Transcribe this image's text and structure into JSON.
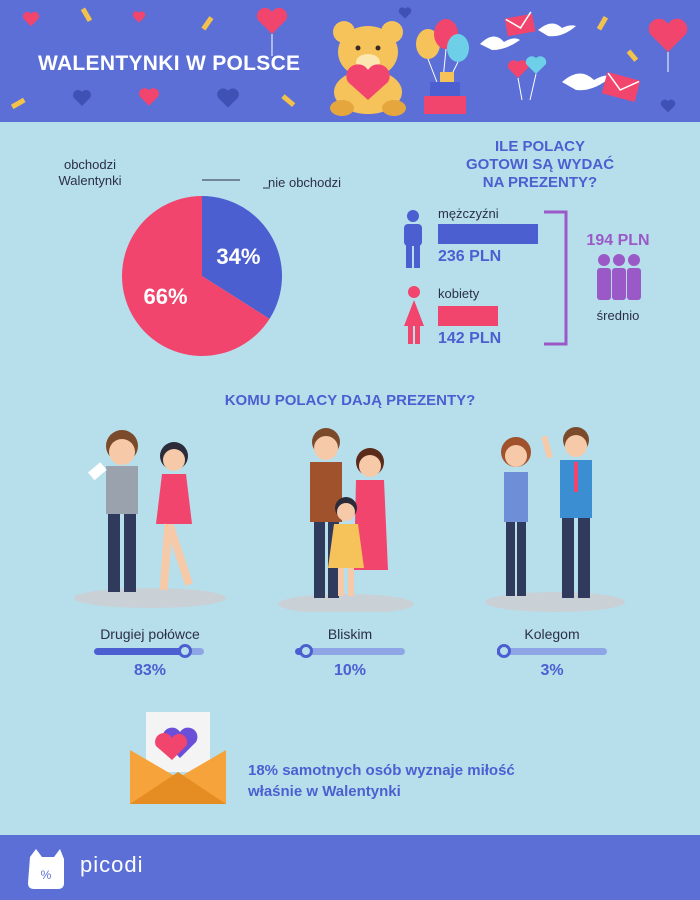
{
  "header": {
    "title": "WALENTYNKI W POLSCE"
  },
  "pie": {
    "label_celebrate": "obchodzi\nWalentynki",
    "label_not": "nie obchodzi"
  },
  "spending": {
    "title": "ILE POLACY\nGOTOWI SĄ WYDAĆ\nNA PREZENTY?",
    "men_label": "mężczyźni",
    "men_value": "236 PLN",
    "women_label": "kobiety",
    "women_value": "142 PLN",
    "avg_value": "194 PLN",
    "avg_label": "średnio"
  },
  "recipients": {
    "title": "KOMU POLACY DAJĄ PREZENTY?",
    "items": [
      {
        "label": "Drugiej połówce",
        "value": "83%",
        "fraction": 0.83
      },
      {
        "label": "Bliskim",
        "value": "10%",
        "fraction": 0.1
      },
      {
        "label": "Kolegom",
        "value": "3%",
        "fraction": 0.03
      }
    ]
  },
  "footnote": {
    "text": "18% samotnych osób wyznaje miłość\nwłaśnie w Walentynki"
  },
  "footer": {
    "brand": "picodi"
  },
  "chart_data": [
    {
      "type": "pie",
      "title": "",
      "slices": [
        {
          "label": "obchodzi Walentynki",
          "value": 66,
          "display": "66%",
          "color": "#f2456e"
        },
        {
          "label": "nie obchodzi",
          "value": 34,
          "display": "34%",
          "color": "#4b5fd1"
        }
      ]
    },
    {
      "type": "bar",
      "title": "ILE POLACY GOTOWI SĄ WYDAĆ NA PREZENTY?",
      "categories": [
        "mężczyźni",
        "kobiety"
      ],
      "values": [
        236,
        142
      ],
      "unit": "PLN",
      "colors": [
        "#4b5fd1",
        "#f2456e"
      ],
      "average": 194
    },
    {
      "type": "bar",
      "title": "KOMU POLACY DAJĄ PREZENTY?",
      "categories": [
        "Drugiej połówce",
        "Bliskim",
        "Kolegom"
      ],
      "values": [
        83,
        10,
        3
      ],
      "unit": "%"
    }
  ],
  "colors": {
    "header": "#5b6fd7",
    "background": "#b7dfeb",
    "accent_blue": "#4b5fd1",
    "accent_pink": "#f2456e",
    "purple": "#9b59c8"
  }
}
